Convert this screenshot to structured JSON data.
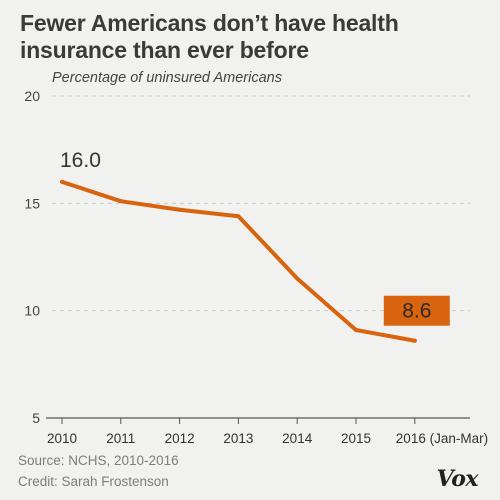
{
  "header": {
    "title": "Fewer Americans don’t have health insurance than ever before",
    "subtitle": "Percentage of uninsured Americans"
  },
  "footer": {
    "source": "Source: NCHS, 2010-2016",
    "credit": "Credit: Sarah Frostenson",
    "logo_text": "Vox"
  },
  "chart_data": {
    "type": "line",
    "title": "Fewer Americans don’t have health insurance than ever before",
    "subtitle": "Percentage of uninsured Americans",
    "x": [
      "2010",
      "2011",
      "2012",
      "2013",
      "2014",
      "2015",
      "2016 (Jan-Mar)"
    ],
    "y": [
      16.0,
      15.1,
      14.7,
      14.4,
      11.5,
      9.1,
      8.6
    ],
    "ylim": [
      5,
      20
    ],
    "yticks": [
      5,
      10,
      15,
      20
    ],
    "grid": true,
    "annotations": [
      {
        "x": "2010",
        "label": "16.0",
        "style": "plain"
      },
      {
        "x": "2016 (Jan-Mar)",
        "label": "8.6",
        "style": "boxed"
      }
    ],
    "colors": {
      "line": "#d8640f",
      "label_box": "#d8640f",
      "grid": "#c9c9c9",
      "axis": "#555555"
    }
  }
}
